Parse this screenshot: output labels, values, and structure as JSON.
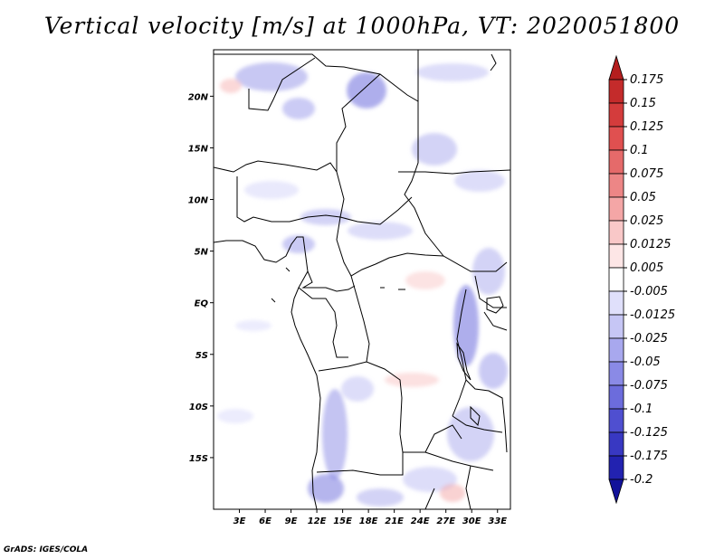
{
  "title": "Vertical velocity [m/s] at 1000hPa, VT: 2020051800",
  "credit": "GrADS: IGES/COLA",
  "chart_data": {
    "type": "heatmap",
    "title": "Vertical velocity [m/s] at 1000hPa, VT: 2020051800",
    "variable": "Vertical velocity",
    "units": "m/s",
    "level": "1000hPa",
    "valid_time": "2020051800",
    "x_range_deg": [
      0,
      34.5
    ],
    "y_range_deg": [
      -20,
      24.5
    ],
    "x_ticks": [
      {
        "value": 3,
        "label": "3E"
      },
      {
        "value": 6,
        "label": "6E"
      },
      {
        "value": 9,
        "label": "9E"
      },
      {
        "value": 12,
        "label": "12E"
      },
      {
        "value": 15,
        "label": "15E"
      },
      {
        "value": 18,
        "label": "18E"
      },
      {
        "value": 21,
        "label": "21E"
      },
      {
        "value": 24,
        "label": "24E"
      },
      {
        "value": 27,
        "label": "27E"
      },
      {
        "value": 30,
        "label": "30E"
      },
      {
        "value": 33,
        "label": "33E"
      }
    ],
    "y_ticks": [
      {
        "value": 20,
        "label": "20N"
      },
      {
        "value": 15,
        "label": "15N"
      },
      {
        "value": 10,
        "label": "10N"
      },
      {
        "value": 5,
        "label": "5N"
      },
      {
        "value": 0,
        "label": "EQ"
      },
      {
        "value": -5,
        "label": "5S"
      },
      {
        "value": -10,
        "label": "10S"
      },
      {
        "value": -15,
        "label": "15S"
      }
    ],
    "colorbar": {
      "placement": "right",
      "levels": [
        {
          "label": "0.175",
          "value": 0.175
        },
        {
          "label": "0.15",
          "value": 0.15
        },
        {
          "label": "0.125",
          "value": 0.125
        },
        {
          "label": "0.1",
          "value": 0.1
        },
        {
          "label": "0.075",
          "value": 0.075
        },
        {
          "label": "0.05",
          "value": 0.05
        },
        {
          "label": "0.025",
          "value": 0.025
        },
        {
          "label": "0.0125",
          "value": 0.0125
        },
        {
          "label": "0.005",
          "value": 0.005
        },
        {
          "label": "-0.005",
          "value": -0.005
        },
        {
          "label": "-0.0125",
          "value": -0.0125
        },
        {
          "label": "-0.025",
          "value": -0.025
        },
        {
          "label": "-0.05",
          "value": -0.05
        },
        {
          "label": "-0.075",
          "value": -0.075
        },
        {
          "label": "-0.1",
          "value": -0.1
        },
        {
          "label": "-0.125",
          "value": -0.125
        },
        {
          "label": "-0.175",
          "value": -0.175
        },
        {
          "label": "-0.2",
          "value": -0.2
        }
      ],
      "colors_top_to_bottom": [
        "#b41e1e",
        "#c42b2b",
        "#d43c3c",
        "#e05050",
        "#e56a6a",
        "#ed8686",
        "#f4a6a6",
        "#f9c8c8",
        "#fde6e6",
        "#ffffff",
        "#e0e0fb",
        "#c6c6f5",
        "#a8a8ee",
        "#8a8ae6",
        "#6c6cdc",
        "#4f4fd0",
        "#3838c2",
        "#2222b0",
        "#12129a"
      ]
    }
  }
}
